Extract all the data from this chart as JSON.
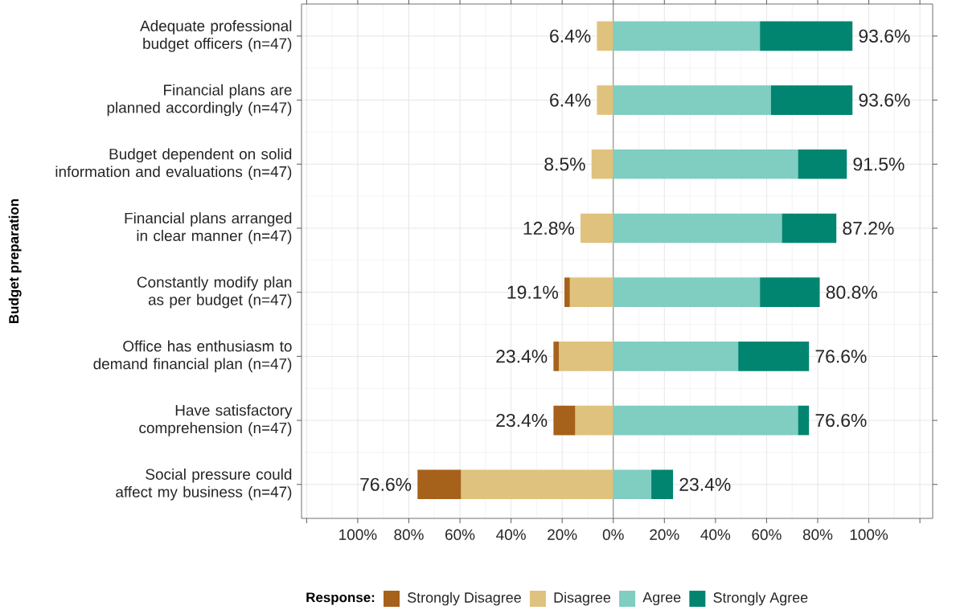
{
  "chart_data": {
    "type": "bar",
    "orientation": "horizontal",
    "stacked": true,
    "ylabel": "Budget preparation",
    "legend_title": "Response:",
    "legend": "bottom",
    "grid": true,
    "categories": [
      "Adequate professional budget officers (n=47)",
      "Financial plans are planned accordingly (n=47)",
      "Budget dependent on solid information and evaluations (n=47)",
      "Financial plans arranged in clear manner (n=47)",
      "Constantly modify plan as per budget (n=47)",
      "Office has enthusiasm to demand financial plan (n=47)",
      "Have satisfactory comprehension (n=47)",
      "Social pressure could affect my business (n=47)"
    ],
    "series": [
      {
        "name": "Disagree",
        "color": "#dfc27d",
        "values": [
          -6.4,
          -6.4,
          -8.5,
          -12.8,
          -17.0,
          -21.3,
          -14.9,
          -59.6
        ]
      },
      {
        "name": "Strongly Disagree",
        "color": "#a6611a",
        "values": [
          0,
          0,
          0,
          0,
          -2.1,
          -2.1,
          -8.5,
          -17.0
        ]
      },
      {
        "name": "Agree",
        "color": "#80cdc1",
        "values": [
          57.4,
          61.7,
          72.3,
          66.0,
          57.4,
          48.9,
          72.3,
          14.9
        ]
      },
      {
        "name": "Strongly Agree",
        "color": "#018571",
        "values": [
          36.2,
          31.9,
          19.1,
          21.3,
          23.4,
          27.7,
          4.3,
          8.5
        ]
      }
    ],
    "annotations": [
      {
        "text": "6.4%",
        "x": -6.4,
        "y": "Adequate professional budget officers (n=47)"
      },
      {
        "text": "93.6%",
        "x": 93.6,
        "y": "Adequate professional budget officers (n=47)"
      },
      {
        "text": "6.4%",
        "x": -6.4,
        "y": "Financial plans are planned accordingly (n=47)"
      },
      {
        "text": "93.6%",
        "x": 93.6,
        "y": "Financial plans are planned accordingly (n=47)"
      },
      {
        "text": "8.5%",
        "x": -8.5,
        "y": "Budget dependent on solid information and evaluations (n=47)"
      },
      {
        "text": "91.5%",
        "x": 91.4,
        "y": "Budget dependent on solid information and evaluations (n=47)"
      },
      {
        "text": "12.8%",
        "x": -12.8,
        "y": "Financial plans arranged in clear manner (n=47)"
      },
      {
        "text": "87.2%",
        "x": 87.3,
        "y": "Financial plans arranged in clear manner (n=47)"
      },
      {
        "text": "19.1%",
        "x": -19.1,
        "y": "Constantly modify plan as per budget (n=47)"
      },
      {
        "text": "80.8%",
        "x": 80.8,
        "y": "Constantly modify plan as per budget (n=47)"
      },
      {
        "text": "23.4%",
        "x": -23.4,
        "y": "Office has enthusiasm to demand financial plan (n=47)"
      },
      {
        "text": "76.6%",
        "x": 76.6,
        "y": "Office has enthusiasm to demand financial plan (n=47)"
      },
      {
        "text": "23.4%",
        "x": -23.4,
        "y": "Have satisfactory comprehension (n=47)"
      },
      {
        "text": "76.6%",
        "x": 76.6,
        "y": "Have satisfactory comprehension (n=47)"
      },
      {
        "text": "76.6%",
        "x": -76.6,
        "y": "Social pressure could affect my business (n=47)"
      },
      {
        "text": "23.4%",
        "x": 23.4,
        "y": "Social pressure could affect my business (n=47)"
      }
    ],
    "xlim": [
      -122,
      125
    ],
    "xticks": [
      {
        "value": -120,
        "label": null
      },
      {
        "value": -100,
        "label": "100%"
      },
      {
        "value": -80,
        "label": "80%"
      },
      {
        "value": -60,
        "label": "60%"
      },
      {
        "value": -40,
        "label": "40%"
      },
      {
        "value": -20,
        "label": "20%"
      },
      {
        "value": 0,
        "label": "0%"
      },
      {
        "value": 20,
        "label": "20%"
      },
      {
        "value": 40,
        "label": "40%"
      },
      {
        "value": 60,
        "label": "60%"
      },
      {
        "value": 80,
        "label": "80%"
      },
      {
        "value": 100,
        "label": "100%"
      },
      {
        "value": 120,
        "label": null
      }
    ],
    "ref_lines": [
      {
        "axis": "x",
        "value": 0,
        "color": "#808080"
      }
    ]
  }
}
